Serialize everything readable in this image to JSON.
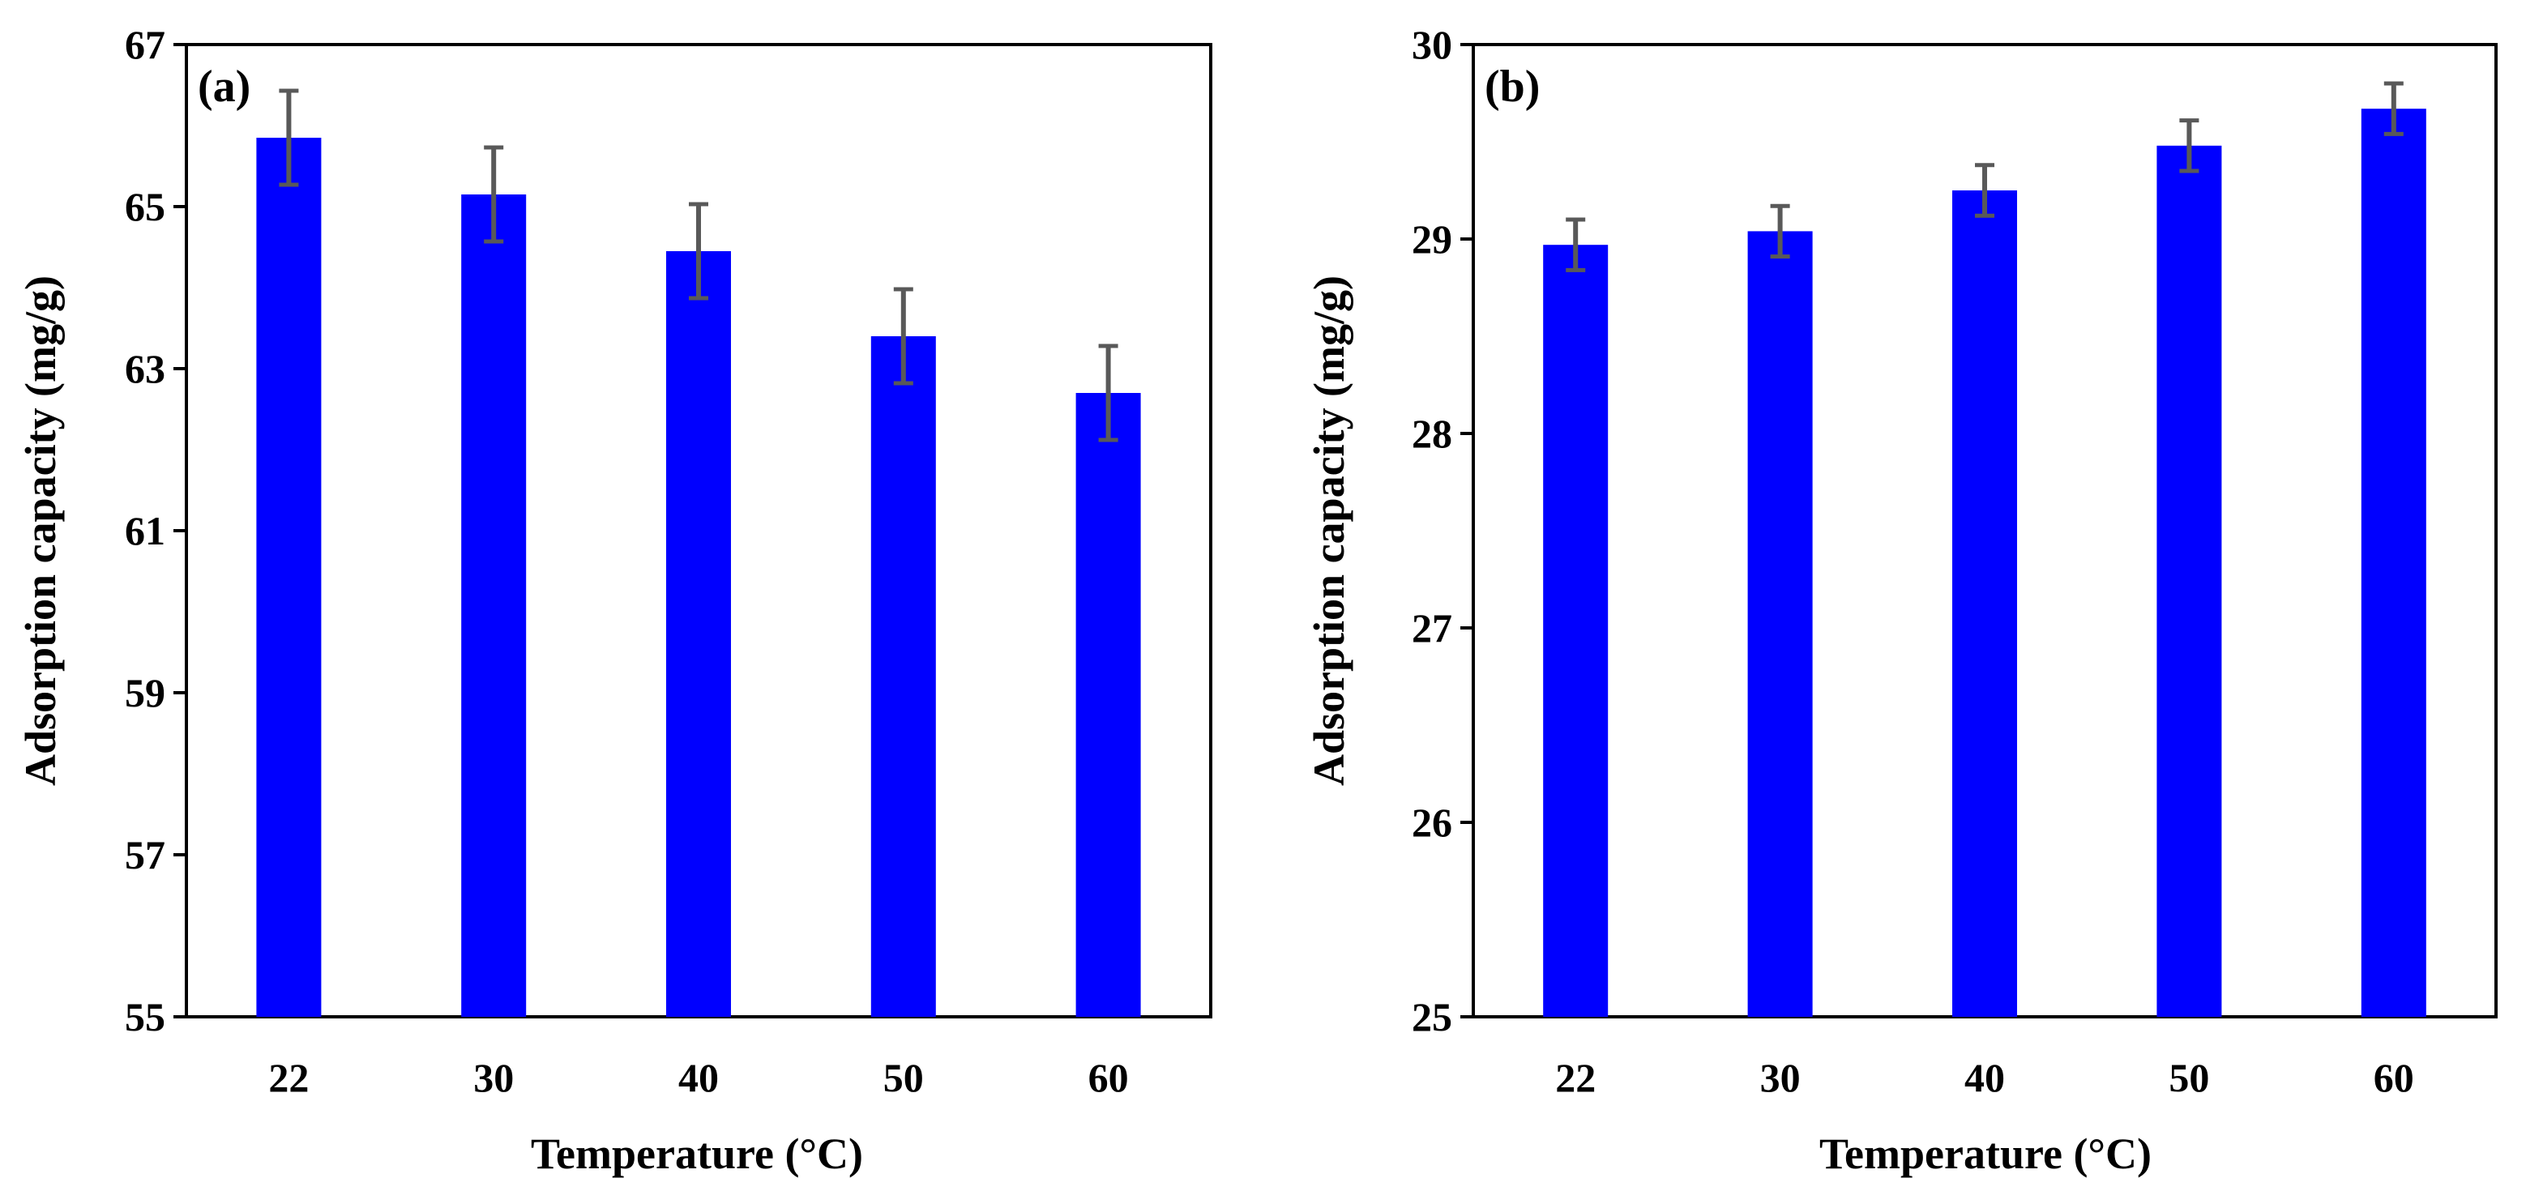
{
  "chart_data": [
    {
      "type": "bar",
      "panel_label": "(a)",
      "categories": [
        "22",
        "30",
        "40",
        "50",
        "60"
      ],
      "values": [
        65.85,
        65.15,
        64.45,
        63.4,
        62.7
      ],
      "errors": [
        0.58,
        0.58,
        0.58,
        0.58,
        0.58
      ],
      "xlabel": "Temperature (°C)",
      "ylabel": "Adsorption capacity (mg/g)",
      "ylim": [
        55,
        67
      ],
      "yticks": [
        55,
        57,
        59,
        61,
        63,
        65,
        67
      ],
      "ytick_labels": [
        "55",
        "57",
        "59",
        "61",
        "63",
        "65",
        "67"
      ],
      "grid": false,
      "legend": "none"
    },
    {
      "type": "bar",
      "panel_label": "(b)",
      "categories": [
        "22",
        "30",
        "40",
        "50",
        "60"
      ],
      "values": [
        28.97,
        29.04,
        29.25,
        29.48,
        29.67
      ],
      "errors": [
        0.13,
        0.13,
        0.13,
        0.13,
        0.13
      ],
      "xlabel": "Temperature (°C)",
      "ylabel": "Adsorption capacity (mg/g)",
      "ylim": [
        25,
        30
      ],
      "yticks": [
        25,
        26,
        27,
        28,
        29,
        30
      ],
      "ytick_labels": [
        "25",
        "26",
        "27",
        "28",
        "29",
        "30"
      ],
      "grid": false,
      "legend": "none"
    }
  ],
  "colors": {
    "bar": "#0000ff",
    "error_bar": "#595959",
    "axis": "#000000"
  }
}
